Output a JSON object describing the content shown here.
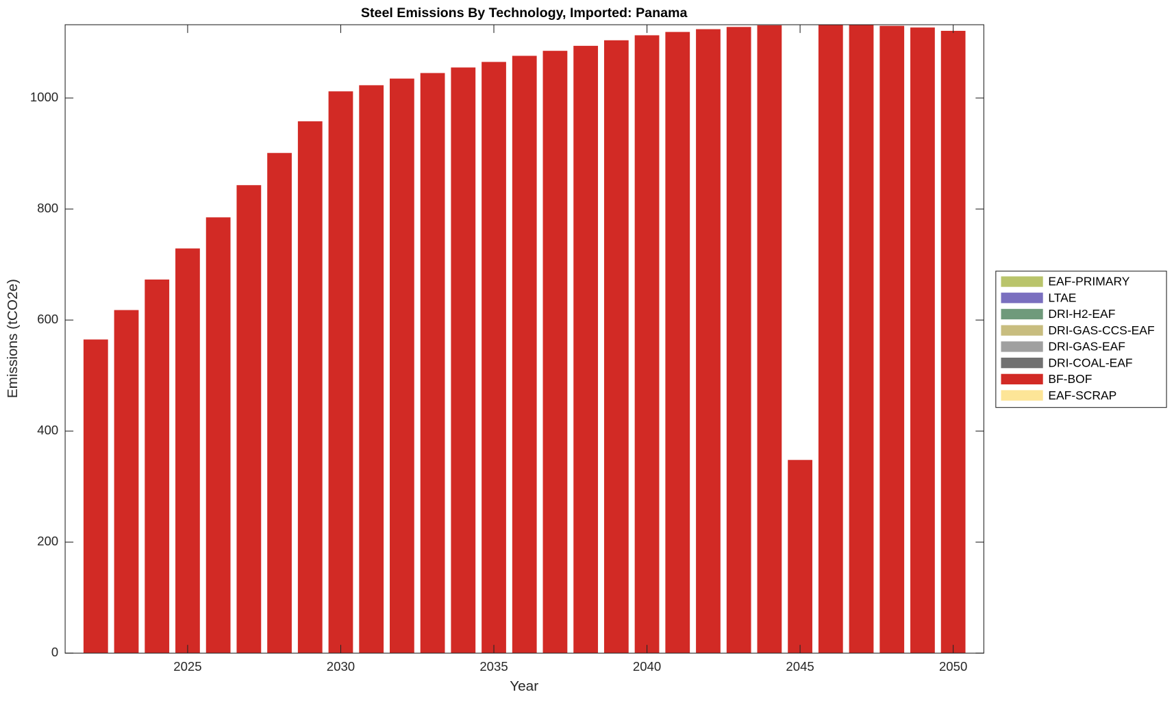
{
  "chart_data": {
    "type": "bar",
    "stacked": true,
    "title": "Steel Emissions By Technology, Imported: Panama",
    "xlabel": "Year",
    "ylabel": "Emissions (tCO2e)",
    "x": [
      2022,
      2023,
      2024,
      2025,
      2026,
      2027,
      2028,
      2029,
      2030,
      2031,
      2032,
      2033,
      2034,
      2035,
      2036,
      2037,
      2038,
      2039,
      2040,
      2041,
      2042,
      2043,
      2044,
      2045,
      2046,
      2047,
      2048,
      2049,
      2050
    ],
    "xlim": [
      2021,
      2051
    ],
    "xticks": [
      2025,
      2030,
      2035,
      2040,
      2045,
      2050
    ],
    "ylim": [
      0,
      1132
    ],
    "yticks": [
      0,
      200,
      400,
      600,
      800,
      1000
    ],
    "legend": "outside-right",
    "series": [
      {
        "name": "EAF-PRIMARY",
        "color": "#b9c46b",
        "values": [
          0,
          0,
          0,
          0,
          0,
          0,
          0,
          0,
          0,
          0,
          0,
          0,
          0,
          0,
          0,
          0,
          0,
          0,
          0,
          0,
          0,
          0,
          0,
          0,
          0,
          0,
          0,
          0,
          0
        ]
      },
      {
        "name": "LTAE",
        "color": "#7a6fbf",
        "values": [
          0,
          0,
          0,
          0,
          0,
          0,
          0,
          0,
          0,
          0,
          0,
          0,
          0,
          0,
          0,
          0,
          0,
          0,
          0,
          0,
          0,
          0,
          0,
          0,
          0,
          0,
          0,
          0,
          0
        ]
      },
      {
        "name": "DRI-H2-EAF",
        "color": "#6f9a7b",
        "values": [
          0,
          0,
          0,
          0,
          0,
          0,
          0,
          0,
          0,
          0,
          0,
          0,
          0,
          0,
          0,
          0,
          0,
          0,
          0,
          0,
          0,
          0,
          0,
          0,
          0,
          0,
          0,
          0,
          0
        ]
      },
      {
        "name": "DRI-GAS-CCS-EAF",
        "color": "#c8bd7f",
        "values": [
          0,
          0,
          0,
          0,
          0,
          0,
          0,
          0,
          0,
          0,
          0,
          0,
          0,
          0,
          0,
          0,
          0,
          0,
          0,
          0,
          0,
          0,
          0,
          0,
          0,
          0,
          0,
          0,
          0
        ]
      },
      {
        "name": "DRI-GAS-EAF",
        "color": "#a0a0a0",
        "values": [
          0,
          0,
          0,
          0,
          0,
          0,
          0,
          0,
          0,
          0,
          0,
          0,
          0,
          0,
          0,
          0,
          0,
          0,
          0,
          0,
          0,
          0,
          0,
          0,
          0,
          0,
          0,
          0,
          0
        ]
      },
      {
        "name": "DRI-COAL-EAF",
        "color": "#717171",
        "values": [
          0,
          0,
          0,
          0,
          0,
          0,
          0,
          0,
          0,
          0,
          0,
          0,
          0,
          0,
          0,
          0,
          0,
          0,
          0,
          0,
          0,
          0,
          0,
          0,
          0,
          0,
          0,
          0,
          0
        ]
      },
      {
        "name": "BF-BOF",
        "color": "#d22a25",
        "values": [
          565,
          618,
          673,
          729,
          785,
          843,
          901,
          958,
          1012,
          1023,
          1035,
          1045,
          1055,
          1065,
          1076,
          1085,
          1094,
          1104,
          1113,
          1119,
          1124,
          1128,
          1131,
          348,
          1140,
          1140,
          1130,
          1127,
          1121
        ]
      },
      {
        "name": "EAF-SCRAP",
        "color": "#fde597",
        "values": [
          0,
          0,
          0,
          0,
          0,
          0,
          0,
          0,
          0,
          0,
          0,
          0,
          0,
          0,
          0,
          0,
          0,
          0,
          0,
          0,
          0,
          0,
          0,
          0,
          0,
          0,
          0,
          0,
          0
        ]
      }
    ]
  }
}
